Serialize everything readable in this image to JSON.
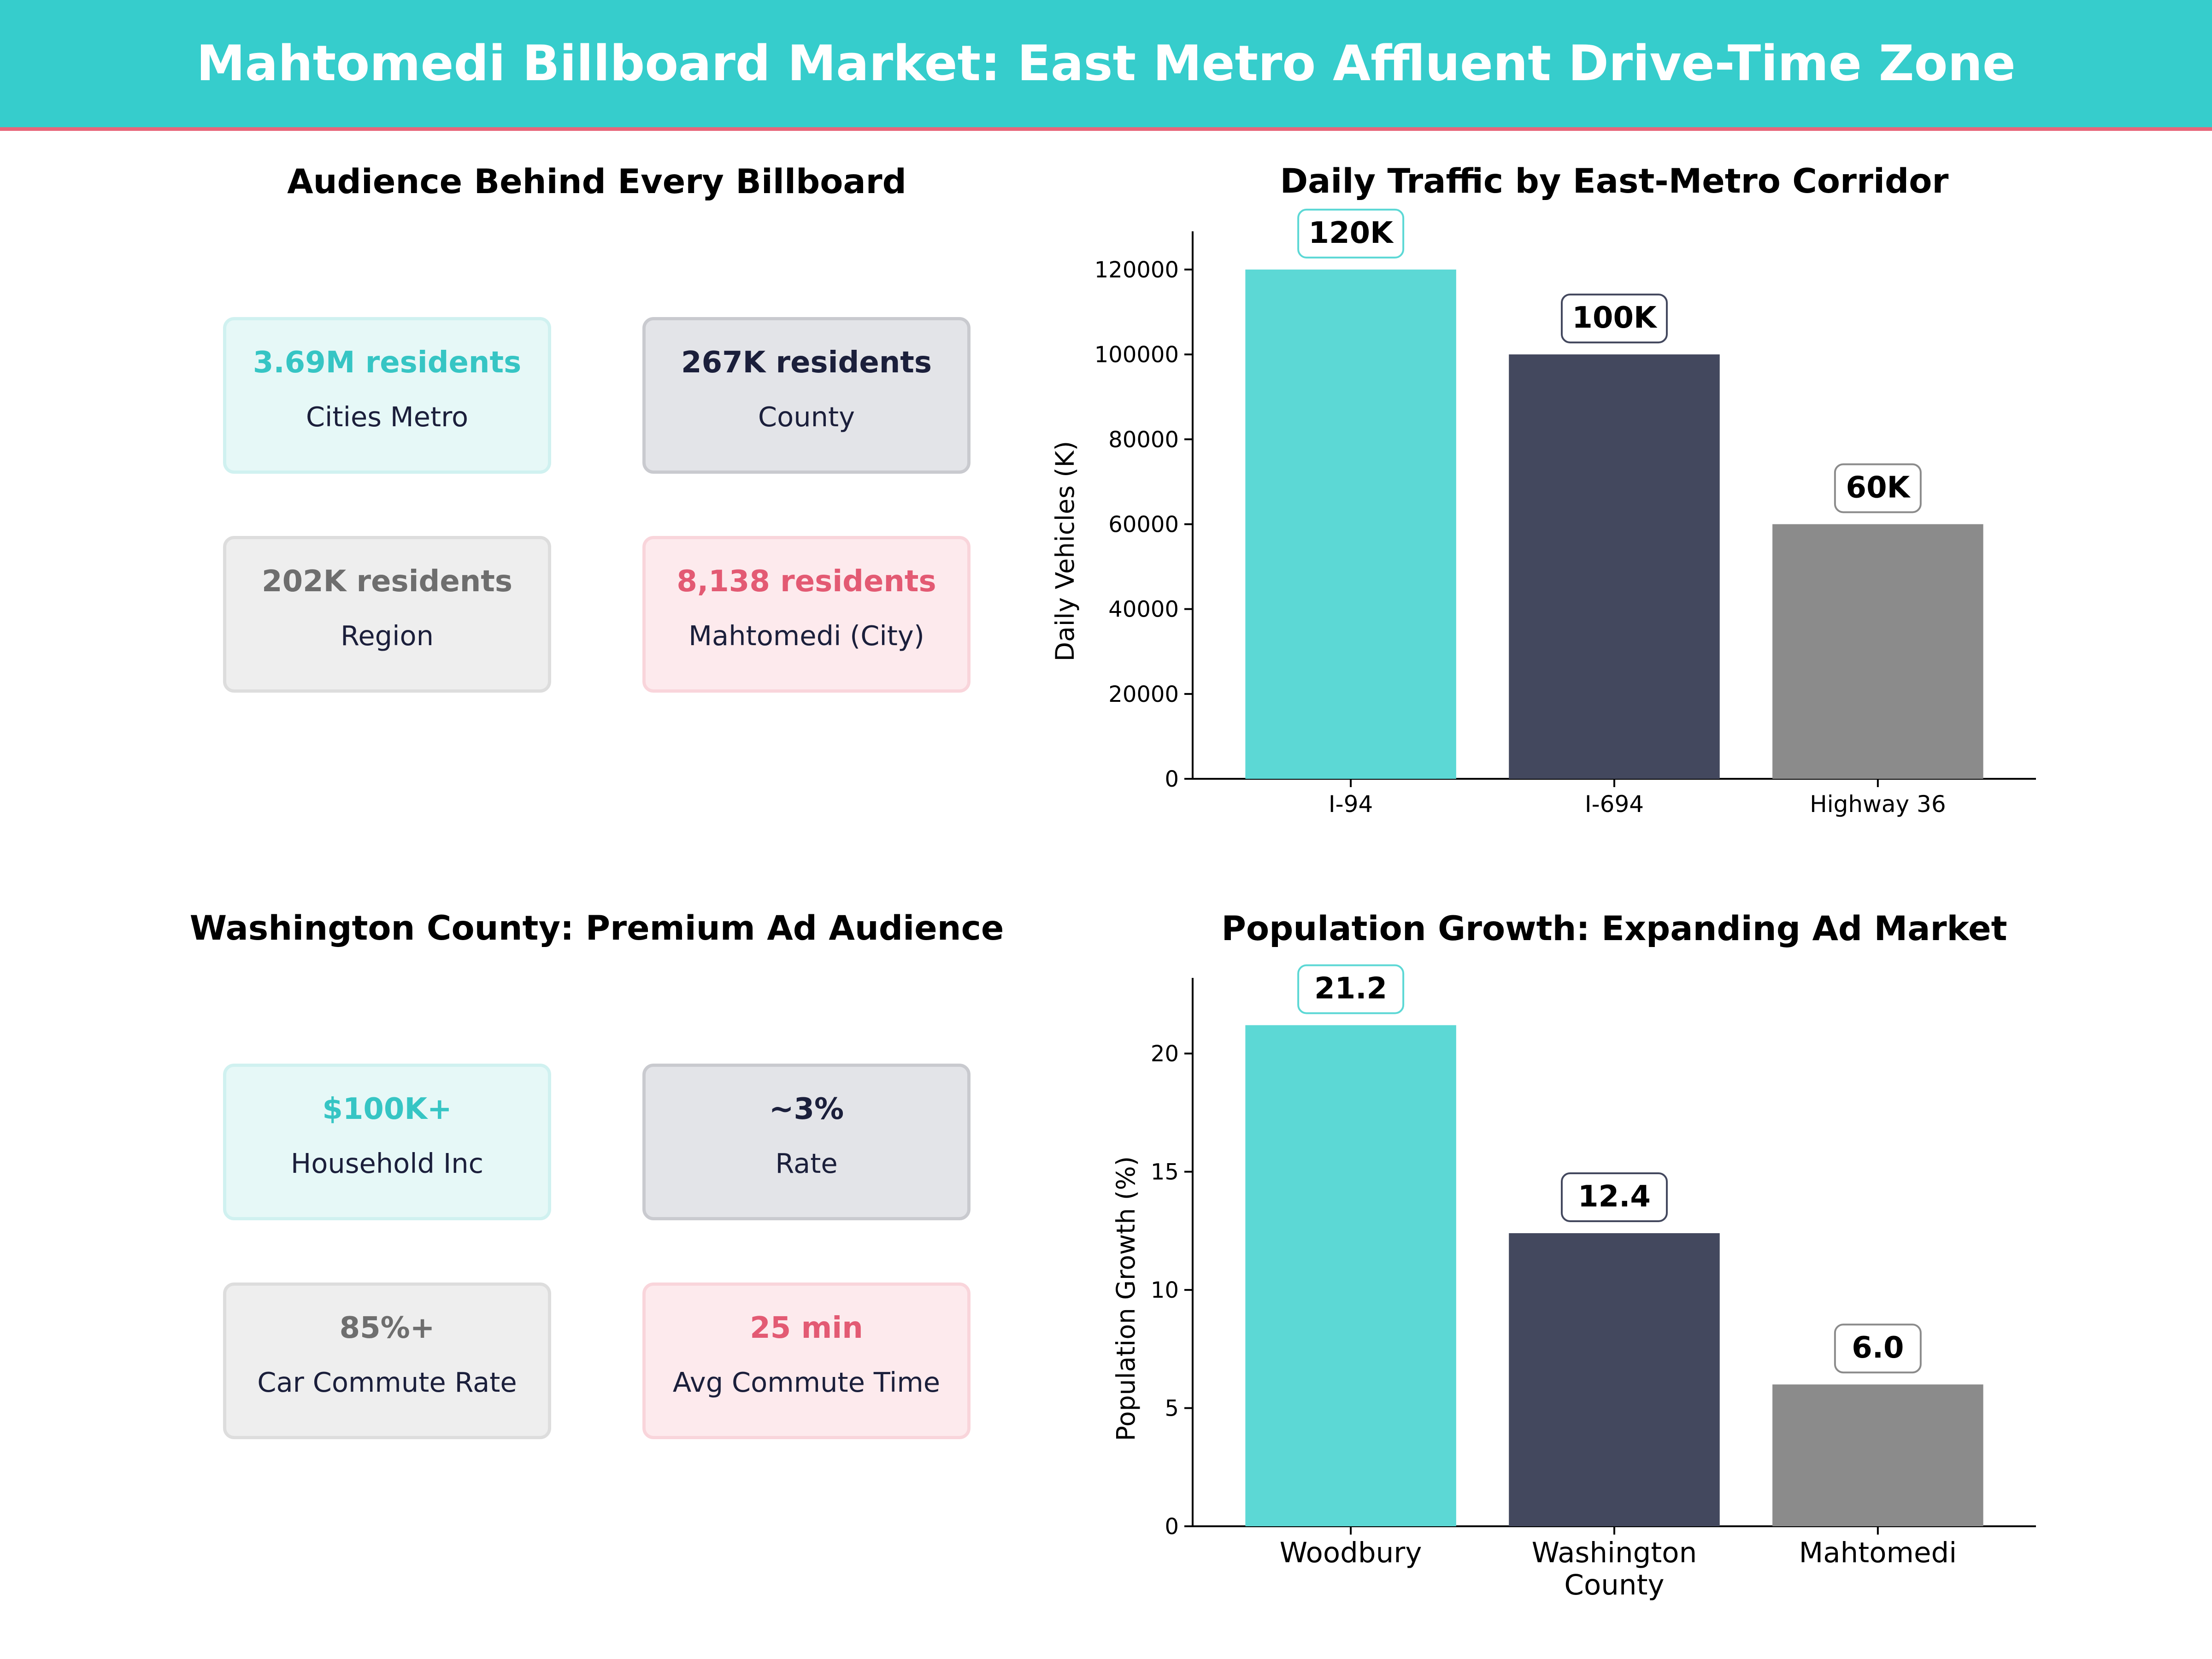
{
  "header": {
    "title": "Mahtomedi Billboard Market: East Metro Affluent Drive-Time Zone"
  },
  "audience_panel": {
    "title": "Audience Behind Every Billboard",
    "cards": [
      {
        "value": "3.69M residents",
        "label": "Cities Metro"
      },
      {
        "value": "267K residents",
        "label": "County"
      },
      {
        "value": "202K residents",
        "label": "Region"
      },
      {
        "value": "8,138 residents",
        "label": "Mahtomedi (City)"
      }
    ]
  },
  "county_panel": {
    "title": "Washington County: Premium Ad Audience",
    "cards": [
      {
        "value": "$100K+",
        "label": "Household Inc"
      },
      {
        "value": "~3%",
        "label": "Rate"
      },
      {
        "value": "85%+",
        "label": "Car Commute Rate"
      },
      {
        "value": "25 min",
        "label": "Avg Commute Time"
      }
    ]
  },
  "colors": {
    "teal": "#5cd8d5",
    "navy": "#43485e",
    "grey": "#8b8b8b",
    "banner": "#36cdcc",
    "accent": "#e8667a"
  },
  "chart_data": [
    {
      "type": "bar",
      "title": "Daily Traffic by East-Metro Corridor",
      "xlabel": "",
      "ylabel": "Daily Vehicles (K)",
      "categories": [
        "I-94",
        "I-694",
        "Highway 36"
      ],
      "values": [
        120000,
        100000,
        60000
      ],
      "data_labels": [
        "120K",
        "100K",
        "60K"
      ],
      "yticks": [
        "0",
        "20000",
        "40000",
        "60000",
        "80000",
        "100000",
        "120000"
      ],
      "ylim": [
        0,
        129000
      ],
      "grid": false
    },
    {
      "type": "bar",
      "title": "Population Growth: Expanding Ad Market",
      "xlabel": "",
      "ylabel": "Population Growth (%)",
      "categories": [
        "Woodbury",
        "Washington\nCounty",
        "Mahtomedi"
      ],
      "values": [
        21.2,
        12.4,
        6.0
      ],
      "data_labels": [
        "21.2",
        "12.4",
        "6.0"
      ],
      "yticks": [
        "0",
        "5",
        "10",
        "15",
        "20"
      ],
      "ylim": [
        0,
        23.2
      ],
      "grid": false
    }
  ]
}
